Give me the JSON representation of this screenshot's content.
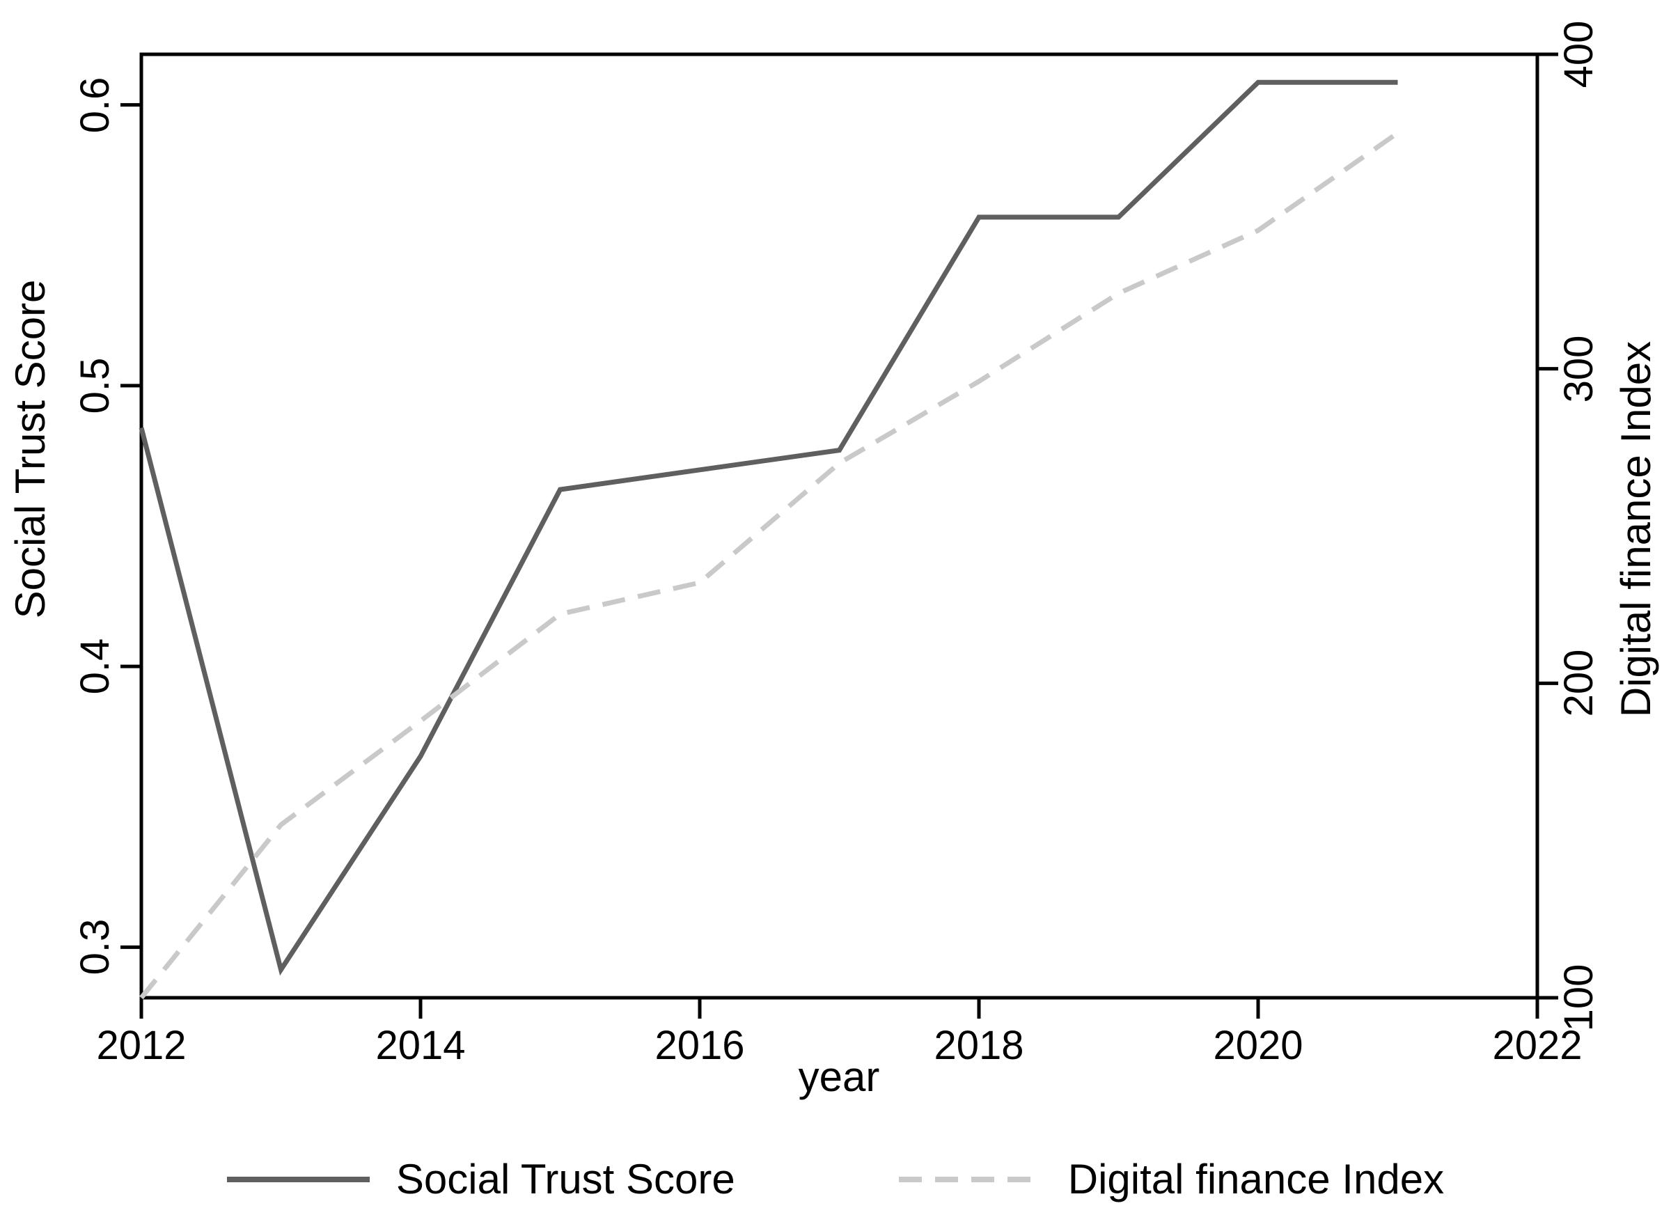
{
  "figure": {
    "background": "#ffffff",
    "axis_color": "#000000",
    "text_color": "#000000"
  },
  "chart_data": {
    "type": "line",
    "title": "",
    "x": [
      2012,
      2013,
      2014,
      2015,
      2016,
      2017,
      2018,
      2019,
      2020,
      2021
    ],
    "series": [
      {
        "name": "Social Trust Score",
        "axis": "left",
        "color": "#5f5f5f",
        "style": "solid",
        "values": [
          0.485,
          0.292,
          0.368,
          0.463,
          0.47,
          0.477,
          0.56,
          0.56,
          0.608,
          0.608
        ]
      },
      {
        "name": "Digital finance Index",
        "axis": "right",
        "color": "#c9c9c9",
        "style": "dashed",
        "values": [
          100,
          155,
          188,
          222,
          232,
          270,
          296,
          324,
          344,
          375
        ]
      }
    ],
    "xlabel": "year",
    "ylabel_left": "Social Trust Score",
    "ylabel_right": "Digital finance Index",
    "xlim": [
      2012,
      2022
    ],
    "ylim_left": [
      0.282,
      0.618
    ],
    "ylim_right": [
      100,
      400
    ],
    "xticks": [
      2012,
      2014,
      2016,
      2018,
      2020,
      2022
    ],
    "yticks_left": [
      0.3,
      0.4,
      0.5,
      0.6
    ],
    "yticks_right": [
      100,
      200,
      300,
      400
    ],
    "grid": false,
    "legend_position": "bottom-center"
  }
}
